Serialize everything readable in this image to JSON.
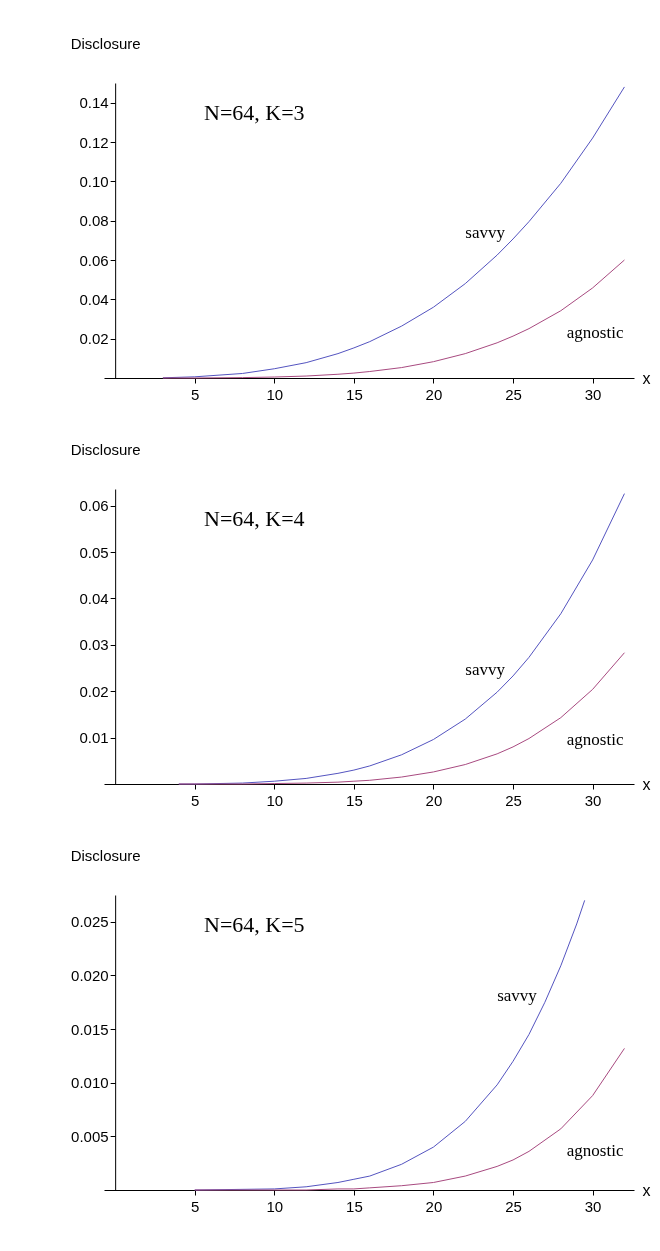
{
  "chart_data": [
    {
      "type": "line",
      "xlabel": "x",
      "ylabel": "Disclosure",
      "annotations": [
        "N=64, K=3"
      ],
      "x": [
        3,
        5,
        8,
        10,
        12,
        14,
        15,
        16,
        18,
        20,
        22,
        24,
        25,
        26,
        28,
        30,
        32
      ],
      "xlim": [
        -0.7,
        32.6
      ],
      "ylim": [
        0,
        0.15
      ],
      "xticks": [
        5,
        10,
        15,
        20,
        25,
        30
      ],
      "yticks": [
        {
          "value": 0.02,
          "label": "0.02"
        },
        {
          "value": 0.04,
          "label": "0.04"
        },
        {
          "value": 0.06,
          "label": "0.06"
        },
        {
          "value": 0.08,
          "label": "0.08"
        },
        {
          "value": 0.1,
          "label": "0.10"
        },
        {
          "value": 0.12,
          "label": "0.12"
        },
        {
          "value": 0.14,
          "label": "0.14"
        }
      ],
      "series": [
        {
          "name": "savvy",
          "color": "#5454c0",
          "values": [
            0.0001,
            0.0006,
            0.0023,
            0.0047,
            0.0078,
            0.0124,
            0.0153,
            0.0185,
            0.0264,
            0.036,
            0.048,
            0.0625,
            0.0707,
            0.0795,
            0.099,
            0.122,
            0.148
          ]
        },
        {
          "name": "agnostic",
          "color": "#a84a80",
          "values": [
            0,
            0,
            0.0002,
            0.0005,
            0.001,
            0.0019,
            0.0025,
            0.0033,
            0.0053,
            0.0083,
            0.0124,
            0.0179,
            0.0213,
            0.0251,
            0.0342,
            0.0458,
            0.06
          ]
        }
      ]
    },
    {
      "type": "line",
      "xlabel": "x",
      "ylabel": "Disclosure",
      "annotations": [
        "N=64, K=4"
      ],
      "x": [
        4,
        5,
        8,
        10,
        12,
        14,
        15,
        16,
        18,
        20,
        22,
        24,
        25,
        26,
        28,
        30,
        32
      ],
      "xlim": [
        -0.7,
        32.6
      ],
      "ylim": [
        0,
        0.0636
      ],
      "xticks": [
        5,
        10,
        15,
        20,
        25,
        30
      ],
      "yticks": [
        0.01,
        0.02,
        0.03,
        0.04,
        0.05,
        0.06
      ],
      "series": [
        {
          "name": "savvy",
          "color": "#5454c0",
          "values": [
            0,
            0,
            0.0002,
            0.0006,
            0.0012,
            0.0023,
            0.003,
            0.0039,
            0.0063,
            0.0096,
            0.014,
            0.0198,
            0.0233,
            0.0273,
            0.0367,
            0.0483,
            0.0626
          ]
        },
        {
          "name": "agnostic",
          "color": "#a84a80",
          "values": [
            0,
            0,
            0,
            0.0001,
            0.0002,
            0.0004,
            0.0006,
            0.0008,
            0.0015,
            0.0026,
            0.0042,
            0.0065,
            0.008,
            0.0098,
            0.0143,
            0.0204,
            0.0283
          ]
        }
      ]
    },
    {
      "type": "line",
      "xlabel": "x",
      "ylabel": "Disclosure",
      "annotations": [
        "N=64, K=5"
      ],
      "xlim": [
        -0.7,
        32.6
      ],
      "ylim": [
        0,
        0.0275
      ],
      "xticks": [
        5,
        10,
        15,
        20,
        25,
        30
      ],
      "yticks": [
        {
          "value": 0.005,
          "label": "0.005"
        },
        {
          "value": 0.01,
          "label": "0.010"
        },
        {
          "value": 0.015,
          "label": "0.015"
        },
        {
          "value": 0.02,
          "label": "0.020"
        },
        {
          "value": 0.025,
          "label": "0.025"
        }
      ],
      "series": [
        {
          "name": "savvy",
          "color": "#5454c0",
          "x": [
            5,
            10,
            12,
            14,
            15,
            16,
            18,
            20,
            22,
            24,
            25,
            26,
            27,
            28,
            29,
            29.5
          ],
          "values": [
            0,
            0.0001,
            0.0003,
            0.0007,
            0.001,
            0.0013,
            0.0024,
            0.004,
            0.0064,
            0.0098,
            0.012,
            0.0145,
            0.0175,
            0.0209,
            0.0248,
            0.027
          ]
        },
        {
          "name": "agnostic",
          "color": "#a84a80",
          "x": [
            5,
            10,
            12,
            14,
            15,
            16,
            18,
            20,
            22,
            24,
            25,
            26,
            28,
            30,
            32
          ],
          "values": [
            0,
            0,
            0,
            0.0001,
            0.0001,
            0.0002,
            0.0004,
            0.0007,
            0.0013,
            0.0022,
            0.0028,
            0.0036,
            0.0057,
            0.0088,
            0.0132
          ]
        }
      ]
    }
  ]
}
